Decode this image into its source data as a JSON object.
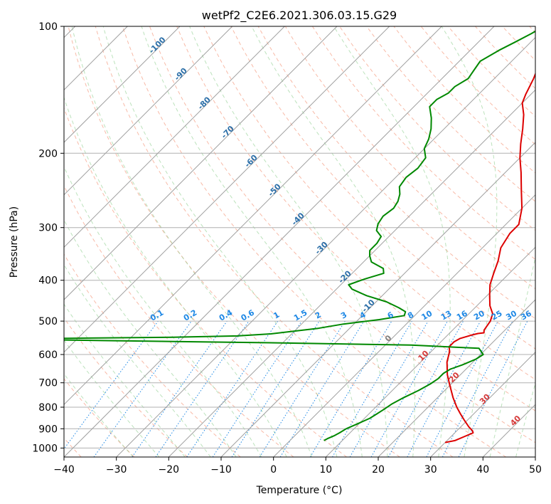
{
  "chart_data": {
    "type": "line",
    "title": "wetPf2_C2E6.2021.306.03.15.G29",
    "xlabel": "Temperature (°C)",
    "ylabel": "Pressure (hPa)",
    "xlim": [
      -40,
      50
    ],
    "ylim": [
      1050,
      100
    ],
    "y_scale": "log",
    "grid": true,
    "x_ticks": [
      "−40",
      "−30",
      "−20",
      "−10",
      "0",
      "10",
      "20",
      "30",
      "40",
      "50"
    ],
    "y_ticks": [
      "100",
      "200",
      "300",
      "400",
      "500",
      "600",
      "700",
      "800",
      "900",
      "1000"
    ],
    "isotherm_skew_labels": [
      "-100",
      "-90",
      "-80",
      "-70",
      "-60",
      "-50",
      "-40",
      "-30",
      "-20",
      "-10",
      "0",
      "10",
      "20",
      "30",
      "40"
    ],
    "mixing_ratio_labels": [
      "0.1",
      "0.2",
      "0.4",
      "0.6",
      "1",
      "1.5",
      "2",
      "3",
      "4",
      "6",
      "8",
      "10",
      "13",
      "16",
      "20",
      "25",
      "30",
      "36"
    ],
    "series": [
      {
        "color": "#dd0000",
        "points": [
          [
            30.0,
            970
          ],
          [
            31.5,
            960
          ],
          [
            32.5,
            940
          ],
          [
            33.5,
            920
          ],
          [
            33.0,
            910
          ],
          [
            31.5,
            890
          ],
          [
            29.5,
            860
          ],
          [
            27.5,
            830
          ],
          [
            25.5,
            800
          ],
          [
            23.0,
            760
          ],
          [
            20.0,
            710
          ],
          [
            17.5,
            670
          ],
          [
            15.0,
            625
          ],
          [
            13.5,
            590
          ],
          [
            12.5,
            575
          ],
          [
            12.5,
            560
          ],
          [
            13.0,
            550
          ],
          [
            14.5,
            540
          ],
          [
            15.5,
            535
          ],
          [
            16.5,
            533
          ],
          [
            16.0,
            525
          ],
          [
            15.8,
            515
          ],
          [
            15.5,
            500
          ],
          [
            14.5,
            480
          ],
          [
            12.5,
            460
          ],
          [
            10.5,
            435
          ],
          [
            8.5,
            410
          ],
          [
            7.0,
            385
          ],
          [
            5.5,
            360
          ],
          [
            3.5,
            335
          ],
          [
            2.5,
            310
          ],
          [
            2.5,
            295
          ],
          [
            0.0,
            270
          ],
          [
            -3.5,
            245
          ],
          [
            -7.0,
            222
          ],
          [
            -10.0,
            205
          ],
          [
            -12.5,
            190
          ],
          [
            -15.0,
            175
          ],
          [
            -17.5,
            162
          ],
          [
            -20.0,
            152
          ],
          [
            -21.0,
            145
          ],
          [
            -22.5,
            133
          ],
          [
            -24.5,
            121
          ],
          [
            -26.5,
            112
          ],
          [
            -28.5,
            105
          ],
          [
            -30.0,
            100
          ]
        ]
      },
      {
        "color": "#008800",
        "points": [
          [
            6.5,
            960
          ],
          [
            6.8,
            950
          ],
          [
            7.5,
            935
          ],
          [
            8.0,
            920
          ],
          [
            8.5,
            900
          ],
          [
            9.5,
            880
          ],
          [
            11.0,
            850
          ],
          [
            11.5,
            830
          ],
          [
            12.0,
            810
          ],
          [
            12.5,
            785
          ],
          [
            13.5,
            760
          ],
          [
            15.0,
            730
          ],
          [
            16.0,
            705
          ],
          [
            16.5,
            685
          ],
          [
            16.5,
            665
          ],
          [
            17.0,
            650
          ],
          [
            18.5,
            635
          ],
          [
            20.0,
            615
          ],
          [
            20.5,
            600
          ],
          [
            18.5,
            580
          ],
          [
            5.0,
            570
          ],
          [
            -25.0,
            562
          ],
          [
            -55.0,
            556
          ],
          [
            -72.0,
            552
          ],
          [
            -62.0,
            549
          ],
          [
            -42.0,
            546
          ],
          [
            -30.0,
            542
          ],
          [
            -24.0,
            536
          ],
          [
            -20.0,
            528
          ],
          [
            -16.0,
            520
          ],
          [
            -12.0,
            508
          ],
          [
            -6.0,
            496
          ],
          [
            -2.0,
            485
          ],
          [
            -2.5,
            475
          ],
          [
            -4.5,
            465
          ],
          [
            -8.0,
            450
          ],
          [
            -13.0,
            435
          ],
          [
            -17.0,
            420
          ],
          [
            -18.5,
            410
          ],
          [
            -16.5,
            397
          ],
          [
            -14.0,
            385
          ],
          [
            -15.0,
            375
          ],
          [
            -18.5,
            362
          ],
          [
            -20.0,
            350
          ],
          [
            -21.0,
            340
          ],
          [
            -21.0,
            327
          ],
          [
            -21.5,
            315
          ],
          [
            -23.5,
            305
          ],
          [
            -24.5,
            294
          ],
          [
            -25.0,
            282
          ],
          [
            -24.5,
            270
          ],
          [
            -25.0,
            260
          ],
          [
            -26.0,
            250
          ],
          [
            -27.5,
            240
          ],
          [
            -28.0,
            228
          ],
          [
            -27.5,
            217
          ],
          [
            -28.0,
            205
          ],
          [
            -30.0,
            195
          ],
          [
            -31.0,
            185
          ],
          [
            -32.5,
            175
          ],
          [
            -34.5,
            165
          ],
          [
            -37.0,
            155
          ],
          [
            -37.0,
            149
          ],
          [
            -36.0,
            144
          ],
          [
            -36.0,
            139
          ],
          [
            -35.0,
            133
          ],
          [
            -35.5,
            127
          ],
          [
            -36.0,
            121
          ],
          [
            -34.5,
            114
          ],
          [
            -33.0,
            109
          ],
          [
            -31.5,
            104
          ],
          [
            -30.5,
            100
          ]
        ]
      }
    ]
  }
}
